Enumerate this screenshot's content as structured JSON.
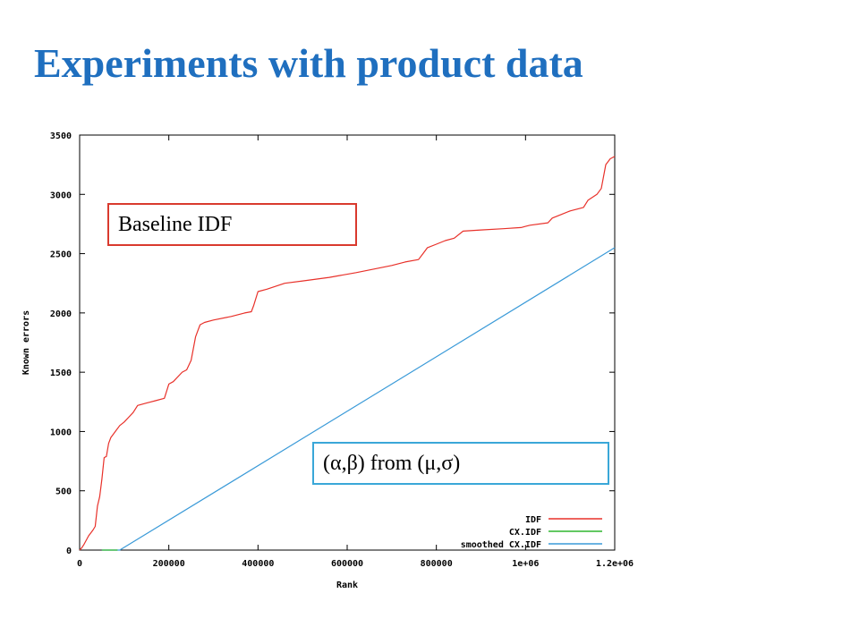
{
  "slide": {
    "title": "Experiments with product data"
  },
  "annotations": {
    "baseline": "Baseline IDF",
    "formula": "(α,β) from (μ,σ)"
  },
  "chart_data": {
    "type": "line",
    "title": "",
    "xlabel": "Rank",
    "ylabel": "Known errors",
    "xlim": [
      0,
      1200000
    ],
    "ylim": [
      0,
      3500
    ],
    "x_ticks": [
      0,
      200000,
      400000,
      600000,
      800000,
      1000000,
      1200000
    ],
    "x_tick_labels": [
      "0",
      "200000",
      "400000",
      "600000",
      "800000",
      "1e+06",
      "1.2e+06"
    ],
    "y_ticks": [
      0,
      500,
      1000,
      1500,
      2000,
      2500,
      3000,
      3500
    ],
    "y_tick_labels": [
      "0",
      "500",
      "1000",
      "1500",
      "2000",
      "2500",
      "3000",
      "3500"
    ],
    "grid": false,
    "legend_position": "bottom-right",
    "series": [
      {
        "name": "IDF",
        "color": "#e8312a",
        "x": [
          0,
          5000,
          10000,
          20000,
          30000,
          35000,
          40000,
          45000,
          50000,
          55000,
          60000,
          65000,
          70000,
          80000,
          90000,
          100000,
          110000,
          120000,
          130000,
          140000,
          150000,
          160000,
          170000,
          190000,
          200000,
          210000,
          230000,
          240000,
          250000,
          260000,
          265000,
          270000,
          280000,
          300000,
          340000,
          370000,
          385000,
          390000,
          400000,
          420000,
          460000,
          500000,
          560000,
          620000,
          660000,
          700000,
          730000,
          760000,
          770000,
          780000,
          800000,
          820000,
          840000,
          860000,
          900000,
          950000,
          990000,
          1000000,
          1010000,
          1050000,
          1060000,
          1080000,
          1100000,
          1130000,
          1140000,
          1160000,
          1170000,
          1175000,
          1180000,
          1190000,
          1200000
        ],
        "y": [
          0,
          20,
          50,
          120,
          170,
          200,
          370,
          450,
          600,
          780,
          790,
          900,
          950,
          1000,
          1050,
          1080,
          1120,
          1160,
          1220,
          1230,
          1240,
          1250,
          1260,
          1280,
          1400,
          1420,
          1500,
          1520,
          1600,
          1800,
          1850,
          1900,
          1920,
          1940,
          1970,
          2000,
          2010,
          2060,
          2180,
          2200,
          2250,
          2270,
          2300,
          2340,
          2370,
          2400,
          2430,
          2450,
          2500,
          2550,
          2580,
          2610,
          2630,
          2690,
          2700,
          2710,
          2720,
          2730,
          2740,
          2760,
          2800,
          2830,
          2860,
          2890,
          2950,
          3000,
          3050,
          3150,
          3250,
          3300,
          3320
        ]
      },
      {
        "name": "CX.IDF",
        "color": "#2fb52f",
        "x": [
          50000,
          85000
        ],
        "y": [
          0,
          0
        ]
      },
      {
        "name": "smoothed CX.IDF",
        "color": "#3a9ad8",
        "x": [
          50000,
          90000,
          700000,
          1200000
        ],
        "y": [
          0,
          0,
          1400,
          2550
        ]
      }
    ]
  }
}
